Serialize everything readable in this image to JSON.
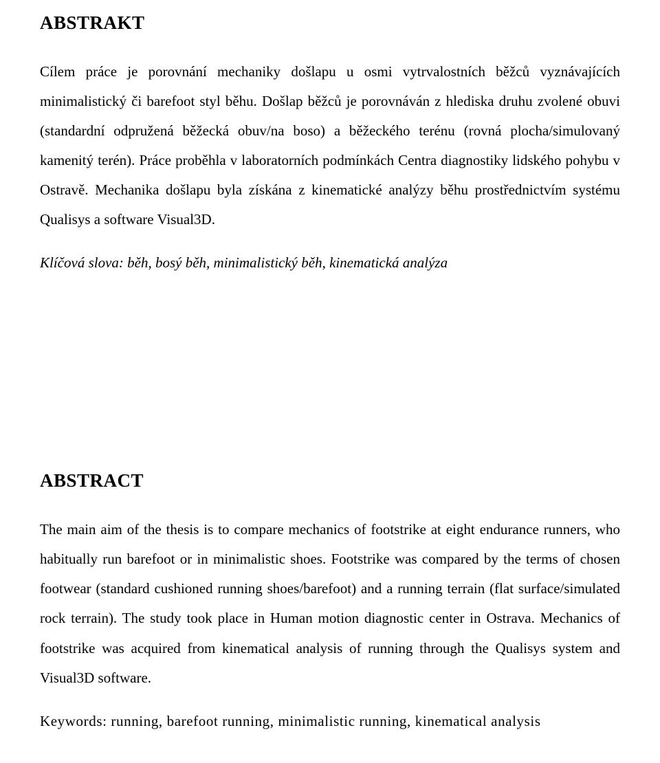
{
  "abstrakt": {
    "heading": "ABSTRAKT",
    "body": "Cílem práce je porovnání mechaniky došlapu u osmi vytrvalostních běžců vyznávajících minimalistický či barefoot styl běhu. Došlap běžců je porovnáván z hlediska druhu zvolené obuvi (standardní odpružená běžecká obuv/na boso) a běžeckého terénu (rovná plocha/simulovaný kamenitý terén). Práce proběhla v laboratorních podmínkách Centra diagnostiky lidského pohybu v Ostravě. Mechanika došlapu byla získána z kinematické analýzy běhu prostřednictvím systému Qualisys a software Visual3D.",
    "keywords": "Klíčová slova: běh, bosý běh, minimalistický běh, kinematická analýza"
  },
  "abstract": {
    "heading": "ABSTRACT",
    "body": "The main aim of the thesis is to compare mechanics of footstrike at eight endurance runners, who habitually run barefoot or in minimalistic shoes. Footstrike was compared by the terms of chosen footwear (standard cushioned running shoes/barefoot) and a running terrain (flat surface/simulated rock terrain). The study took place in Human motion diagnostic center in Ostrava. Mechanics of footstrike was acquired from kinematical analysis of running through the Qualisys system and Visual3D software.",
    "keywords": "Keywords: running, barefoot running, minimalistic running, kinematical analysis"
  }
}
